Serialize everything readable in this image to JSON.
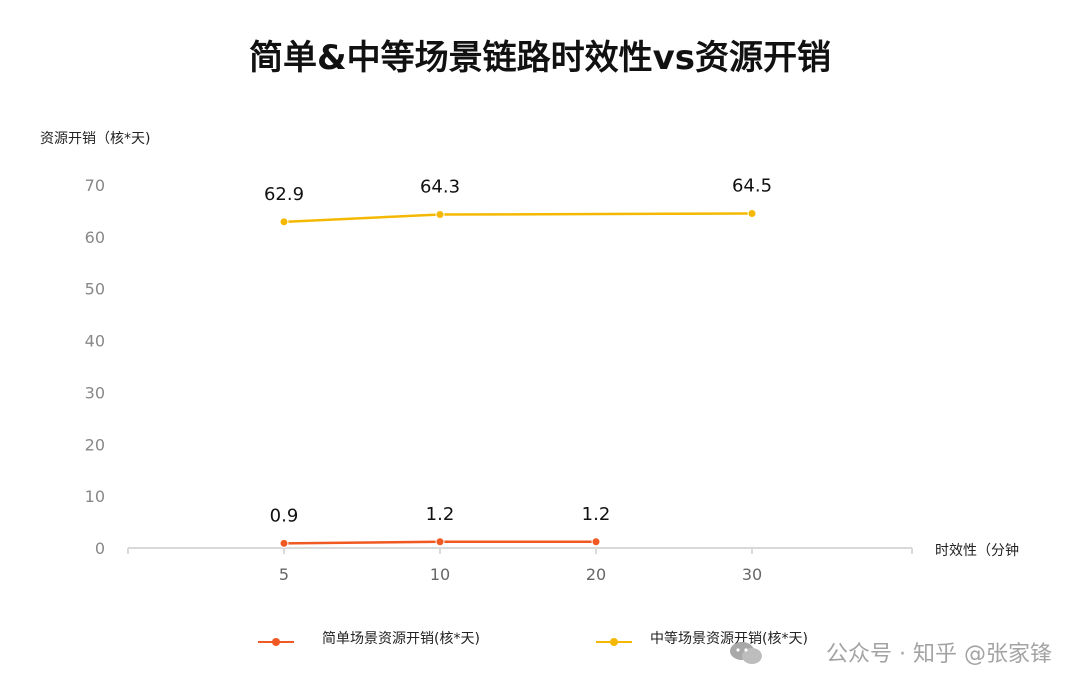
{
  "chart_data": {
    "type": "line",
    "title": "简单&中等场景链路时效性vs资源开销",
    "ylabel": "资源开销（核*天)",
    "xlabel": "时效性（分钟",
    "categories": [
      "5",
      "10",
      "20",
      "30"
    ],
    "ylim": [
      0,
      70
    ],
    "yticks": [
      0,
      10,
      20,
      30,
      40,
      50,
      60,
      70
    ],
    "grid": false,
    "legend_position": "bottom",
    "series": [
      {
        "name": "简单场景资源开销(核*天)",
        "color": "#f05a22",
        "values": [
          0.9,
          1.2,
          1.2,
          null
        ],
        "labels": [
          "0.9",
          "1.2",
          "1.2",
          null
        ]
      },
      {
        "name": "中等场景资源开销(核*天)",
        "color": "#f5b800",
        "values": [
          62.9,
          64.3,
          null,
          64.5
        ],
        "labels": [
          "62.9",
          "64.3",
          null,
          "64.5"
        ]
      }
    ]
  },
  "watermark": "公众号 · 知乎 @张家锋"
}
